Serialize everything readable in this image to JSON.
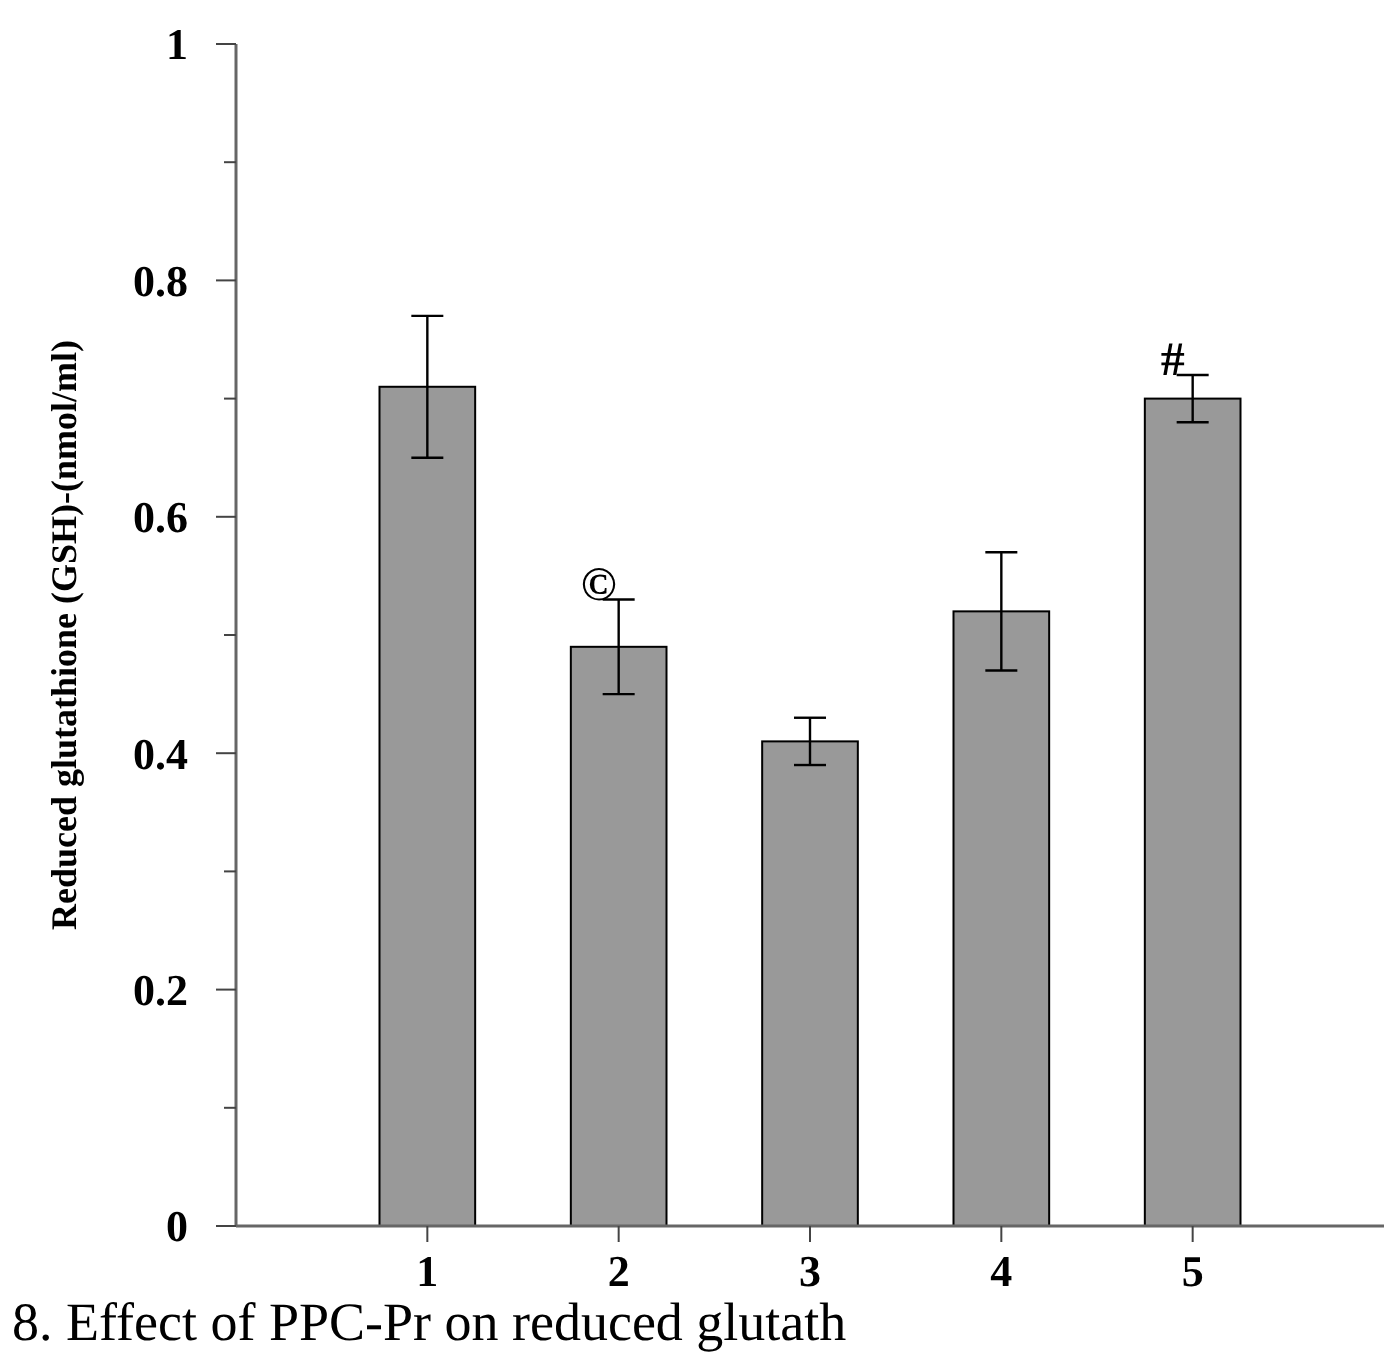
{
  "chart_data": {
    "type": "bar",
    "ylabel": "Reduced glutathione (GSH)-(nmol/ml)",
    "categories": [
      "1",
      "2",
      "3",
      "4",
      "5"
    ],
    "values": [
      0.71,
      0.49,
      0.41,
      0.52,
      0.7
    ],
    "errors": [
      0.06,
      0.04,
      0.02,
      0.05,
      0.02
    ],
    "color": "#999999",
    "ylim": [
      0,
      1
    ],
    "yticks": [
      0,
      {
        "value": 0.1,
        "label": null
      },
      0.2,
      {
        "value": 0.3,
        "label": null
      },
      0.4,
      {
        "value": 0.5,
        "label": null
      },
      0.6,
      {
        "value": 0.7,
        "label": null
      },
      0.8,
      {
        "value": 0.9,
        "label": null
      },
      1
    ],
    "annotations": [
      {
        "text": "©",
        "x": "2",
        "y": 0.53
      },
      {
        "text": "#",
        "x": "5",
        "y": 0.72
      },
      "8. Effect of PPC-Pr on reduced glutath"
    ]
  }
}
